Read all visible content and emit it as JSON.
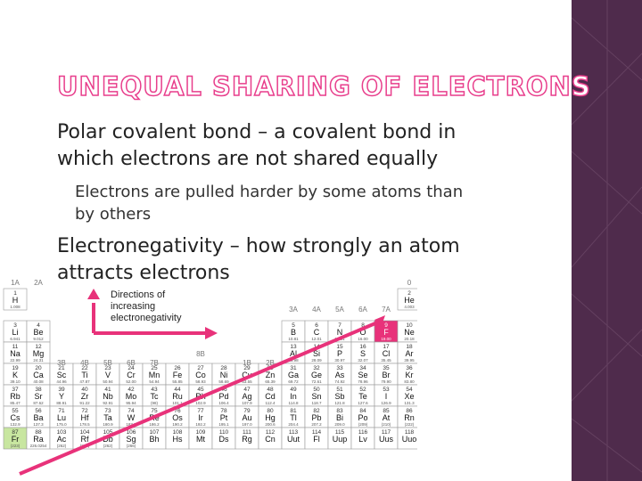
{
  "slide": {
    "title": "UNEQUAL SHARING OF ELECTRONS",
    "bullets": [
      {
        "text_line1": "Polar covalent bond – a covalent bond in",
        "text_line2": "which electrons are not shared equally"
      },
      {
        "text_line1": "Electrons are pulled harder by some atoms than",
        "text_line2": "by others"
      },
      {
        "text_line1": "Electronegativity – how strongly an atom",
        "text_line2": "attracts electrons"
      }
    ],
    "bullet_glyph": "",
    "colors": {
      "accent": "#e83e8c",
      "side_panel": "#4f2b4c",
      "highlight_cell": "#e8327a",
      "green_cell": "#c8e6a0"
    }
  },
  "periodic_table": {
    "caption": [
      "Directions of",
      "increasing",
      "electronegativity"
    ],
    "group_labels": {
      "g1": "1A",
      "g2": "2A",
      "g3": "3B",
      "g4": "4B",
      "g5": "5B",
      "g6": "6B",
      "g7": "7B",
      "g8": "8B",
      "g11": "1B",
      "g12": "2B",
      "g13": "3A",
      "g14": "4A",
      "g15": "5A",
      "g16": "6A",
      "g17": "7A",
      "g18": "0"
    },
    "rows": [
      [
        {
          "g": 1,
          "n": "1",
          "s": "H",
          "m": "1.008"
        },
        {
          "g": 18,
          "n": "2",
          "s": "He",
          "m": "4.003"
        }
      ],
      [
        {
          "g": 1,
          "n": "3",
          "s": "Li",
          "m": "6.941"
        },
        {
          "g": 2,
          "n": "4",
          "s": "Be",
          "m": "9.012"
        },
        {
          "g": 13,
          "n": "5",
          "s": "B",
          "m": "10.81"
        },
        {
          "g": 14,
          "n": "6",
          "s": "C",
          "m": "12.01"
        },
        {
          "g": 15,
          "n": "7",
          "s": "N",
          "m": "14.01"
        },
        {
          "g": 16,
          "n": "8",
          "s": "O",
          "m": "16.00"
        },
        {
          "g": 17,
          "n": "9",
          "s": "F",
          "m": "19.00",
          "hl": true
        },
        {
          "g": 18,
          "n": "10",
          "s": "Ne",
          "m": "20.18"
        }
      ],
      [
        {
          "g": 1,
          "n": "11",
          "s": "Na",
          "m": "22.99"
        },
        {
          "g": 2,
          "n": "12",
          "s": "Mg",
          "m": "24.31"
        },
        {
          "g": 13,
          "n": "13",
          "s": "Al",
          "m": "26.98"
        },
        {
          "g": 14,
          "n": "14",
          "s": "Si",
          "m": "28.09"
        },
        {
          "g": 15,
          "n": "15",
          "s": "P",
          "m": "30.97"
        },
        {
          "g": 16,
          "n": "16",
          "s": "S",
          "m": "32.07"
        },
        {
          "g": 17,
          "n": "17",
          "s": "Cl",
          "m": "35.45"
        },
        {
          "g": 18,
          "n": "18",
          "s": "Ar",
          "m": "39.95"
        }
      ],
      [
        {
          "g": 1,
          "n": "19",
          "s": "K",
          "m": "39.10"
        },
        {
          "g": 2,
          "n": "20",
          "s": "Ca",
          "m": "40.08"
        },
        {
          "g": 3,
          "n": "21",
          "s": "Sc",
          "m": "44.96"
        },
        {
          "g": 4,
          "n": "22",
          "s": "Ti",
          "m": "47.87"
        },
        {
          "g": 5,
          "n": "23",
          "s": "V",
          "m": "50.94"
        },
        {
          "g": 6,
          "n": "24",
          "s": "Cr",
          "m": "52.00"
        },
        {
          "g": 7,
          "n": "25",
          "s": "Mn",
          "m": "54.94"
        },
        {
          "g": 8,
          "n": "26",
          "s": "Fe",
          "m": "55.85"
        },
        {
          "g": 9,
          "n": "27",
          "s": "Co",
          "m": "58.93"
        },
        {
          "g": 10,
          "n": "28",
          "s": "Ni",
          "m": "58.69"
        },
        {
          "g": 11,
          "n": "29",
          "s": "Cu",
          "m": "63.55"
        },
        {
          "g": 12,
          "n": "30",
          "s": "Zn",
          "m": "65.39"
        },
        {
          "g": 13,
          "n": "31",
          "s": "Ga",
          "m": "69.72"
        },
        {
          "g": 14,
          "n": "32",
          "s": "Ge",
          "m": "72.61"
        },
        {
          "g": 15,
          "n": "33",
          "s": "As",
          "m": "74.92"
        },
        {
          "g": 16,
          "n": "34",
          "s": "Se",
          "m": "78.96"
        },
        {
          "g": 17,
          "n": "35",
          "s": "Br",
          "m": "79.90"
        },
        {
          "g": 18,
          "n": "36",
          "s": "Kr",
          "m": "83.80"
        }
      ],
      [
        {
          "g": 1,
          "n": "37",
          "s": "Rb",
          "m": "85.47"
        },
        {
          "g": 2,
          "n": "38",
          "s": "Sr",
          "m": "87.62"
        },
        {
          "g": 3,
          "n": "39",
          "s": "Y",
          "m": "88.91"
        },
        {
          "g": 4,
          "n": "40",
          "s": "Zr",
          "m": "91.22"
        },
        {
          "g": 5,
          "n": "41",
          "s": "Nb",
          "m": "92.91"
        },
        {
          "g": 6,
          "n": "42",
          "s": "Mo",
          "m": "95.94"
        },
        {
          "g": 7,
          "n": "43",
          "s": "Tc",
          "m": "(98)"
        },
        {
          "g": 8,
          "n": "44",
          "s": "Ru",
          "m": "101.1"
        },
        {
          "g": 9,
          "n": "45",
          "s": "Rh",
          "m": "102.9"
        },
        {
          "g": 10,
          "n": "46",
          "s": "Pd",
          "m": "106.4"
        },
        {
          "g": 11,
          "n": "47",
          "s": "Ag",
          "m": "107.9"
        },
        {
          "g": 12,
          "n": "48",
          "s": "Cd",
          "m": "112.4"
        },
        {
          "g": 13,
          "n": "49",
          "s": "In",
          "m": "114.8"
        },
        {
          "g": 14,
          "n": "50",
          "s": "Sn",
          "m": "118.7"
        },
        {
          "g": 15,
          "n": "51",
          "s": "Sb",
          "m": "121.8"
        },
        {
          "g": 16,
          "n": "52",
          "s": "Te",
          "m": "127.6"
        },
        {
          "g": 17,
          "n": "53",
          "s": "I",
          "m": "126.9"
        },
        {
          "g": 18,
          "n": "54",
          "s": "Xe",
          "m": "131.3"
        }
      ],
      [
        {
          "g": 1,
          "n": "55",
          "s": "Cs",
          "m": "132.9"
        },
        {
          "g": 2,
          "n": "56",
          "s": "Ba",
          "m": "137.3"
        },
        {
          "g": 3,
          "n": "71",
          "s": "Lu",
          "m": "175.0"
        },
        {
          "g": 4,
          "n": "72",
          "s": "Hf",
          "m": "178.5"
        },
        {
          "g": 5,
          "n": "73",
          "s": "Ta",
          "m": "180.9"
        },
        {
          "g": 6,
          "n": "74",
          "s": "W",
          "m": "183.8"
        },
        {
          "g": 7,
          "n": "75",
          "s": "Re",
          "m": "186.2"
        },
        {
          "g": 8,
          "n": "76",
          "s": "Os",
          "m": "190.2"
        },
        {
          "g": 9,
          "n": "77",
          "s": "Ir",
          "m": "192.2"
        },
        {
          "g": 10,
          "n": "78",
          "s": "Pt",
          "m": "195.1"
        },
        {
          "g": 11,
          "n": "79",
          "s": "Au",
          "m": "197.0"
        },
        {
          "g": 12,
          "n": "80",
          "s": "Hg",
          "m": "200.6"
        },
        {
          "g": 13,
          "n": "81",
          "s": "Tl",
          "m": "204.4"
        },
        {
          "g": 14,
          "n": "82",
          "s": "Pb",
          "m": "207.2"
        },
        {
          "g": 15,
          "n": "83",
          "s": "Bi",
          "m": "209.0"
        },
        {
          "g": 16,
          "n": "84",
          "s": "Po",
          "m": "(209)"
        },
        {
          "g": 17,
          "n": "85",
          "s": "At",
          "m": "(210)"
        },
        {
          "g": 18,
          "n": "86",
          "s": "Rn",
          "m": "(222)"
        }
      ],
      [
        {
          "g": 1,
          "n": "87",
          "s": "Fr",
          "m": "(223)",
          "green": true
        },
        {
          "g": 2,
          "n": "88",
          "s": "Ra",
          "m": "226.0254"
        },
        {
          "g": 3,
          "n": "103",
          "s": "Ac",
          "m": "(262)"
        },
        {
          "g": 4,
          "n": "104",
          "s": "Rf",
          "m": "(261)"
        },
        {
          "g": 5,
          "n": "105",
          "s": "Db",
          "m": "(262)"
        },
        {
          "g": 6,
          "n": "106",
          "s": "Sg",
          "m": "(266)"
        },
        {
          "g": 7,
          "n": "107",
          "s": "Bh",
          "m": ""
        },
        {
          "g": 8,
          "n": "108",
          "s": "Hs",
          "m": ""
        },
        {
          "g": 9,
          "n": "109",
          "s": "Mt",
          "m": ""
        },
        {
          "g": 10,
          "n": "110",
          "s": "Ds",
          "m": ""
        },
        {
          "g": 11,
          "n": "111",
          "s": "Rg",
          "m": ""
        },
        {
          "g": 12,
          "n": "112",
          "s": "Cn",
          "m": ""
        },
        {
          "g": 13,
          "n": "113",
          "s": "Uut",
          "m": ""
        },
        {
          "g": 14,
          "n": "114",
          "s": "Fl",
          "m": ""
        },
        {
          "g": 15,
          "n": "115",
          "s": "Uup",
          "m": ""
        },
        {
          "g": 16,
          "n": "116",
          "s": "Lv",
          "m": ""
        },
        {
          "g": 17,
          "n": "117",
          "s": "Uus",
          "m": ""
        },
        {
          "g": 18,
          "n": "118",
          "s": "Uuo",
          "m": ""
        }
      ]
    ]
  }
}
